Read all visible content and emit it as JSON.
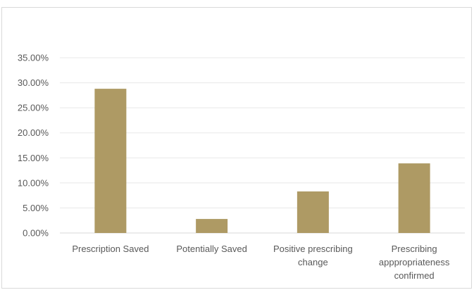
{
  "chart_data": {
    "type": "bar",
    "title": "",
    "xlabel": "",
    "ylabel": "",
    "categories": [
      [
        "Prescription Saved"
      ],
      [
        "Potentially Saved"
      ],
      [
        "Positive prescribing",
        "change"
      ],
      [
        "Prescribing",
        "apppropriateness",
        "confirmed"
      ]
    ],
    "values": [
      28.8,
      2.8,
      8.3,
      13.9
    ],
    "ylim": [
      0,
      35
    ],
    "yticks": [
      0,
      5,
      10,
      15,
      20,
      25,
      30,
      35
    ],
    "ytick_labels": [
      "0.00%",
      "5.00%",
      "10.00%",
      "15.00%",
      "20.00%",
      "25.00%",
      "30.00%",
      "35.00%"
    ],
    "grid": true,
    "legend": "none",
    "bar_color": "#ae9a64",
    "grid_color": "#e8e8e8"
  }
}
